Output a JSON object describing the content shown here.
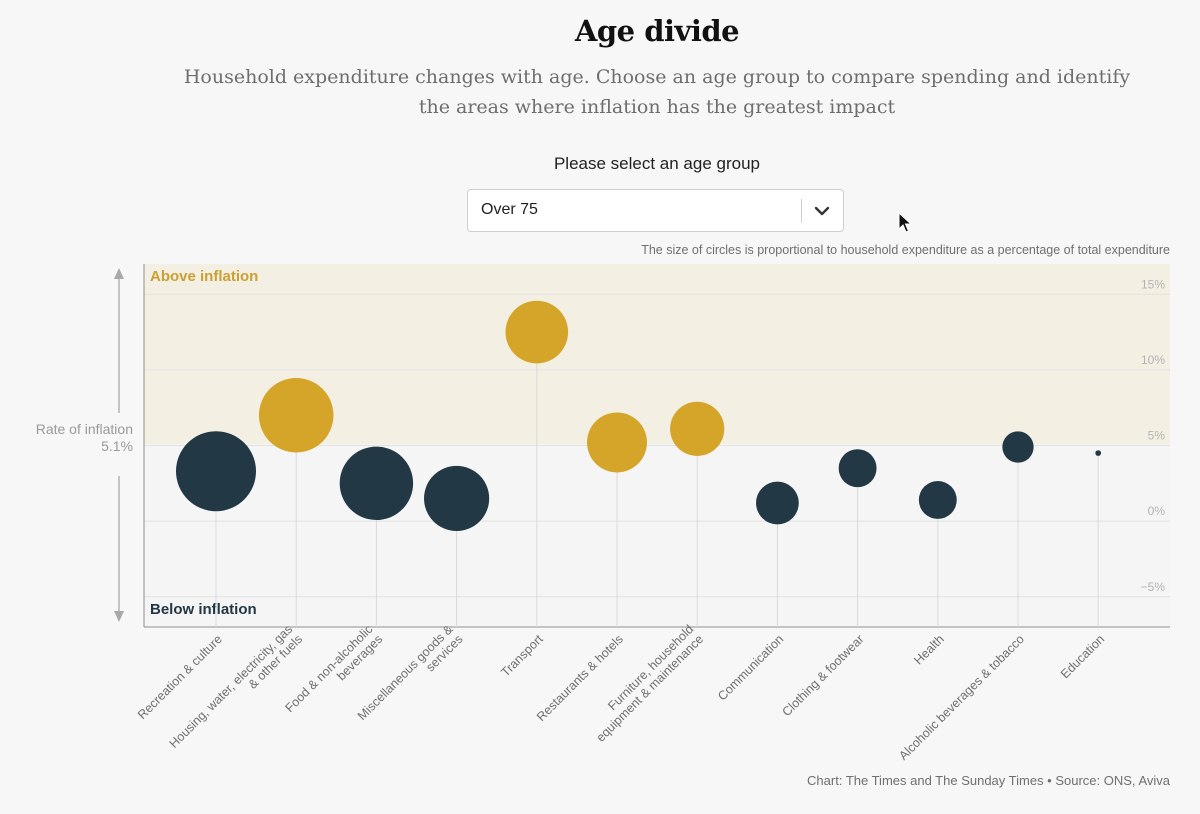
{
  "header": {
    "title": "Age divide",
    "subtitle": "Household expenditure changes with age. Choose an age group to compare spending and identify the areas where inflation has the greatest impact"
  },
  "selector": {
    "label": "Please select an age group",
    "value": "Over 75"
  },
  "note": "The size of circles is proportional to household expenditure as a percentage of total expenditure",
  "source": "Chart: The Times and The Sunday Times • Source: ONS, Aviva",
  "rate": {
    "label": "Rate of inflation",
    "value_label": "5.1%",
    "value": 5.1
  },
  "colors": {
    "above": "#d5a529",
    "below": "#233845",
    "above_band": "#f4efe3",
    "above_text": "#c9a032",
    "below_text": "#233845",
    "grid": "#e2e2e2",
    "stem": "#dadada"
  },
  "chart_data": {
    "type": "scatter",
    "ylim": [
      -7,
      17
    ],
    "yticks": [
      -5,
      0,
      5,
      10,
      15
    ],
    "ytick_labels": [
      "−5%",
      "0%",
      "5%",
      "10%",
      "15%"
    ],
    "band_labels": {
      "above": "Above inflation",
      "below": "Below inflation"
    },
    "points": [
      {
        "category": "Recreation & culture",
        "inflation": 3.3,
        "share": 19.6,
        "status": "below"
      },
      {
        "category": "Housing, water, electricity, gas & other fuels",
        "inflation": 7.0,
        "share": 17.0,
        "status": "above"
      },
      {
        "category": "Food & non-alcoholic beverages",
        "inflation": 2.5,
        "share": 16.5,
        "status": "below"
      },
      {
        "category": "Miscellaneous goods & services",
        "inflation": 1.5,
        "share": 13.0,
        "status": "below"
      },
      {
        "category": "Transport",
        "inflation": 12.5,
        "share": 12.0,
        "status": "above"
      },
      {
        "category": "Restaurants & hotels",
        "inflation": 5.2,
        "share": 11.0,
        "status": "above"
      },
      {
        "category": "Furniture, household equipment & maintenance",
        "inflation": 6.1,
        "share": 9.0,
        "status": "above"
      },
      {
        "category": "Communication",
        "inflation": 1.2,
        "share": 5.6,
        "status": "below"
      },
      {
        "category": "Clothing & footwear",
        "inflation": 3.5,
        "share": 4.4,
        "status": "below"
      },
      {
        "category": "Health",
        "inflation": 1.4,
        "share": 4.4,
        "status": "below"
      },
      {
        "category": "Alcoholic beverages & tobacco",
        "inflation": 4.9,
        "share": 3.0,
        "status": "below"
      },
      {
        "category": "Education",
        "inflation": 4.5,
        "share": 0.1,
        "status": "below"
      }
    ],
    "category_labels": [
      [
        "Recreation & culture"
      ],
      [
        "Housing, water, electricity, gas",
        "& other fuels"
      ],
      [
        "Food & non-alcoholic",
        "beverages"
      ],
      [
        "Miscellaneous goods &",
        "services"
      ],
      [
        "Transport"
      ],
      [
        "Restaurants & hotels"
      ],
      [
        "Furniture, household",
        "equipment & maintenance"
      ],
      [
        "Communication"
      ],
      [
        "Clothing & footwear"
      ],
      [
        "Health"
      ],
      [
        "Alcoholic beverages & tobacco"
      ],
      [
        "Education"
      ]
    ]
  }
}
